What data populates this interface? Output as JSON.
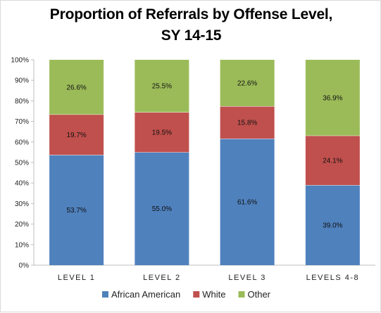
{
  "chart_data": {
    "type": "bar",
    "stacked": true,
    "title_line1": "Proportion of Referrals by Offense Level,",
    "title_line2": "SY 14-15",
    "categories": [
      "LEVEL 1",
      "LEVEL 2",
      "LEVEL 3",
      "LEVELS 4-8"
    ],
    "series": [
      {
        "name": "African American",
        "color": "#4f81bd",
        "values": [
          53.7,
          55.0,
          61.6,
          39.0
        ]
      },
      {
        "name": "White",
        "color": "#c0504d",
        "values": [
          19.7,
          19.5,
          15.8,
          24.1
        ]
      },
      {
        "name": "Other",
        "color": "#9bbb59",
        "values": [
          26.6,
          25.5,
          22.6,
          36.9
        ]
      }
    ],
    "ylim": [
      0,
      100
    ],
    "ytick_step": 10,
    "ytick_suffix": "%",
    "data_label_suffix": "%",
    "grid": false,
    "legend_position": "bottom"
  }
}
